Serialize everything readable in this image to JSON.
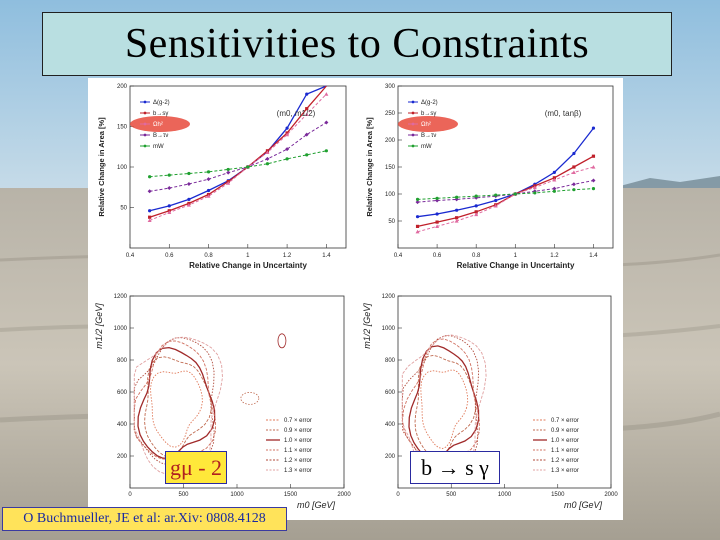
{
  "slide": {
    "title": "Sensitivities to Constraints"
  },
  "labels": {
    "gmu": "gμ - 2",
    "bsg": "b → s γ",
    "credit": "O Buchmueller, JE et al: ar.Xiv: 0808.4128"
  },
  "colors": {
    "title_bg": "#b9dfe1",
    "label_bg": "#ffe83a",
    "credit_bg": "#ffe35a",
    "highlight": "#e74a3c"
  },
  "chart_data": [
    {
      "type": "line",
      "panel": "top-left",
      "annotation": "(m0, m1/2)",
      "xlabel": "Relative Change in Uncertainty",
      "ylabel": "Relative Change in Area [%]",
      "xlim": [
        0.4,
        1.5
      ],
      "ylim": [
        0,
        200
      ],
      "xticks": [
        "0.4",
        "0.6",
        "0.8",
        "1",
        "1.2",
        "1.4"
      ],
      "yticks": [
        "50",
        "100",
        "150",
        "200"
      ],
      "legend_position": "top-left",
      "x": [
        0.5,
        0.6,
        0.7,
        0.8,
        0.9,
        1.0,
        1.1,
        1.2,
        1.3,
        1.4
      ],
      "series": [
        {
          "name": "Δ(g-2)",
          "color": "#1a2ad0",
          "values": [
            46,
            52,
            60,
            71,
            83,
            100,
            119,
            148,
            190,
            245
          ]
        },
        {
          "name": "b→sγ",
          "color": "#c0202a",
          "values": [
            38,
            46,
            55,
            66,
            82,
            100,
            120,
            142,
            172,
            207
          ]
        },
        {
          "name": "Ωh²",
          "color": "#e06aa0",
          "values": [
            34,
            44,
            53,
            64,
            80,
            100,
            118,
            140,
            165,
            190
          ]
        },
        {
          "name": "B→τν",
          "color": "#7a2a9a",
          "values": [
            70,
            74,
            79,
            85,
            93,
            100,
            110,
            122,
            140,
            155
          ]
        },
        {
          "name": "mW",
          "color": "#20a030",
          "values": [
            88,
            90,
            92,
            94,
            97,
            100,
            104,
            110,
            115,
            120
          ]
        }
      ]
    },
    {
      "type": "line",
      "panel": "top-right",
      "annotation": "(m0, tanβ)",
      "xlabel": "Relative Change in Uncertainty",
      "ylabel": "Relative Change in Area [%]",
      "xlim": [
        0.4,
        1.5
      ],
      "ylim": [
        0,
        300
      ],
      "xticks": [
        "0.4",
        "0.6",
        "0.8",
        "1",
        "1.2",
        "1.4"
      ],
      "yticks": [
        "50",
        "100",
        "150",
        "200",
        "250",
        "300"
      ],
      "legend_position": "top-left",
      "x": [
        0.5,
        0.6,
        0.7,
        0.8,
        0.9,
        1.0,
        1.1,
        1.2,
        1.3,
        1.4
      ],
      "series": [
        {
          "name": "Δ(g-2)",
          "color": "#1a2ad0",
          "values": [
            58,
            63,
            70,
            78,
            88,
            100,
            118,
            140,
            175,
            222
          ]
        },
        {
          "name": "b→sγ",
          "color": "#c0202a",
          "values": [
            40,
            48,
            56,
            67,
            80,
            100,
            115,
            130,
            150,
            170
          ]
        },
        {
          "name": "Ωh²",
          "color": "#e06aa0",
          "values": [
            30,
            40,
            50,
            62,
            78,
            100,
            112,
            126,
            140,
            150
          ]
        },
        {
          "name": "B→τν",
          "color": "#7a2a9a",
          "values": [
            85,
            88,
            90,
            93,
            96,
            100,
            105,
            110,
            118,
            125
          ]
        },
        {
          "name": "mW",
          "color": "#20a030",
          "values": [
            90,
            92,
            94,
            96,
            98,
            100,
            102,
            105,
            108,
            110
          ]
        }
      ]
    },
    {
      "type": "contour",
      "panel": "bottom-left",
      "xlabel": "m0 [GeV]",
      "ylabel": "m1/2 [GeV]",
      "xlim": [
        0,
        2000
      ],
      "ylim": [
        0,
        1200
      ],
      "xticks": [
        "0",
        "500",
        "1000",
        "1500",
        "2000"
      ],
      "yticks": [
        "200",
        "400",
        "600",
        "800",
        "1000",
        "1200"
      ],
      "legend_position": "bottom-right",
      "series": [
        {
          "name": "0.7 × error",
          "color": "#e07a5a",
          "scale": 0.7
        },
        {
          "name": "0.9 × error",
          "color": "#c06a50",
          "scale": 0.9
        },
        {
          "name": "1.0 × error",
          "color": "#a02a2a",
          "scale": 1.0
        },
        {
          "name": "1.1 × error",
          "color": "#d07060",
          "scale": 1.1
        },
        {
          "name": "1.2 × error",
          "color": "#b04a3a",
          "scale": 1.2
        },
        {
          "name": "1.3 × error",
          "color": "#e0a0a0",
          "scale": 1.3
        }
      ]
    },
    {
      "type": "contour",
      "panel": "bottom-right",
      "xlabel": "m0 [GeV]",
      "ylabel": "m1/2 [GeV]",
      "xlim": [
        0,
        2000
      ],
      "ylim": [
        0,
        1200
      ],
      "xticks": [
        "0",
        "500",
        "1000",
        "1500",
        "2000"
      ],
      "yticks": [
        "200",
        "400",
        "600",
        "800",
        "1000",
        "1200"
      ],
      "legend_position": "bottom-right",
      "series": [
        {
          "name": "0.7 × error",
          "color": "#e07a5a",
          "scale": 0.7
        },
        {
          "name": "0.9 × error",
          "color": "#c06a50",
          "scale": 0.9
        },
        {
          "name": "1.0 × error",
          "color": "#a02a2a",
          "scale": 1.0
        },
        {
          "name": "1.1 × error",
          "color": "#d07060",
          "scale": 1.1
        },
        {
          "name": "1.2 × error",
          "color": "#b04a3a",
          "scale": 1.2
        },
        {
          "name": "1.3 × error",
          "color": "#e0a0a0",
          "scale": 1.3
        }
      ]
    }
  ]
}
